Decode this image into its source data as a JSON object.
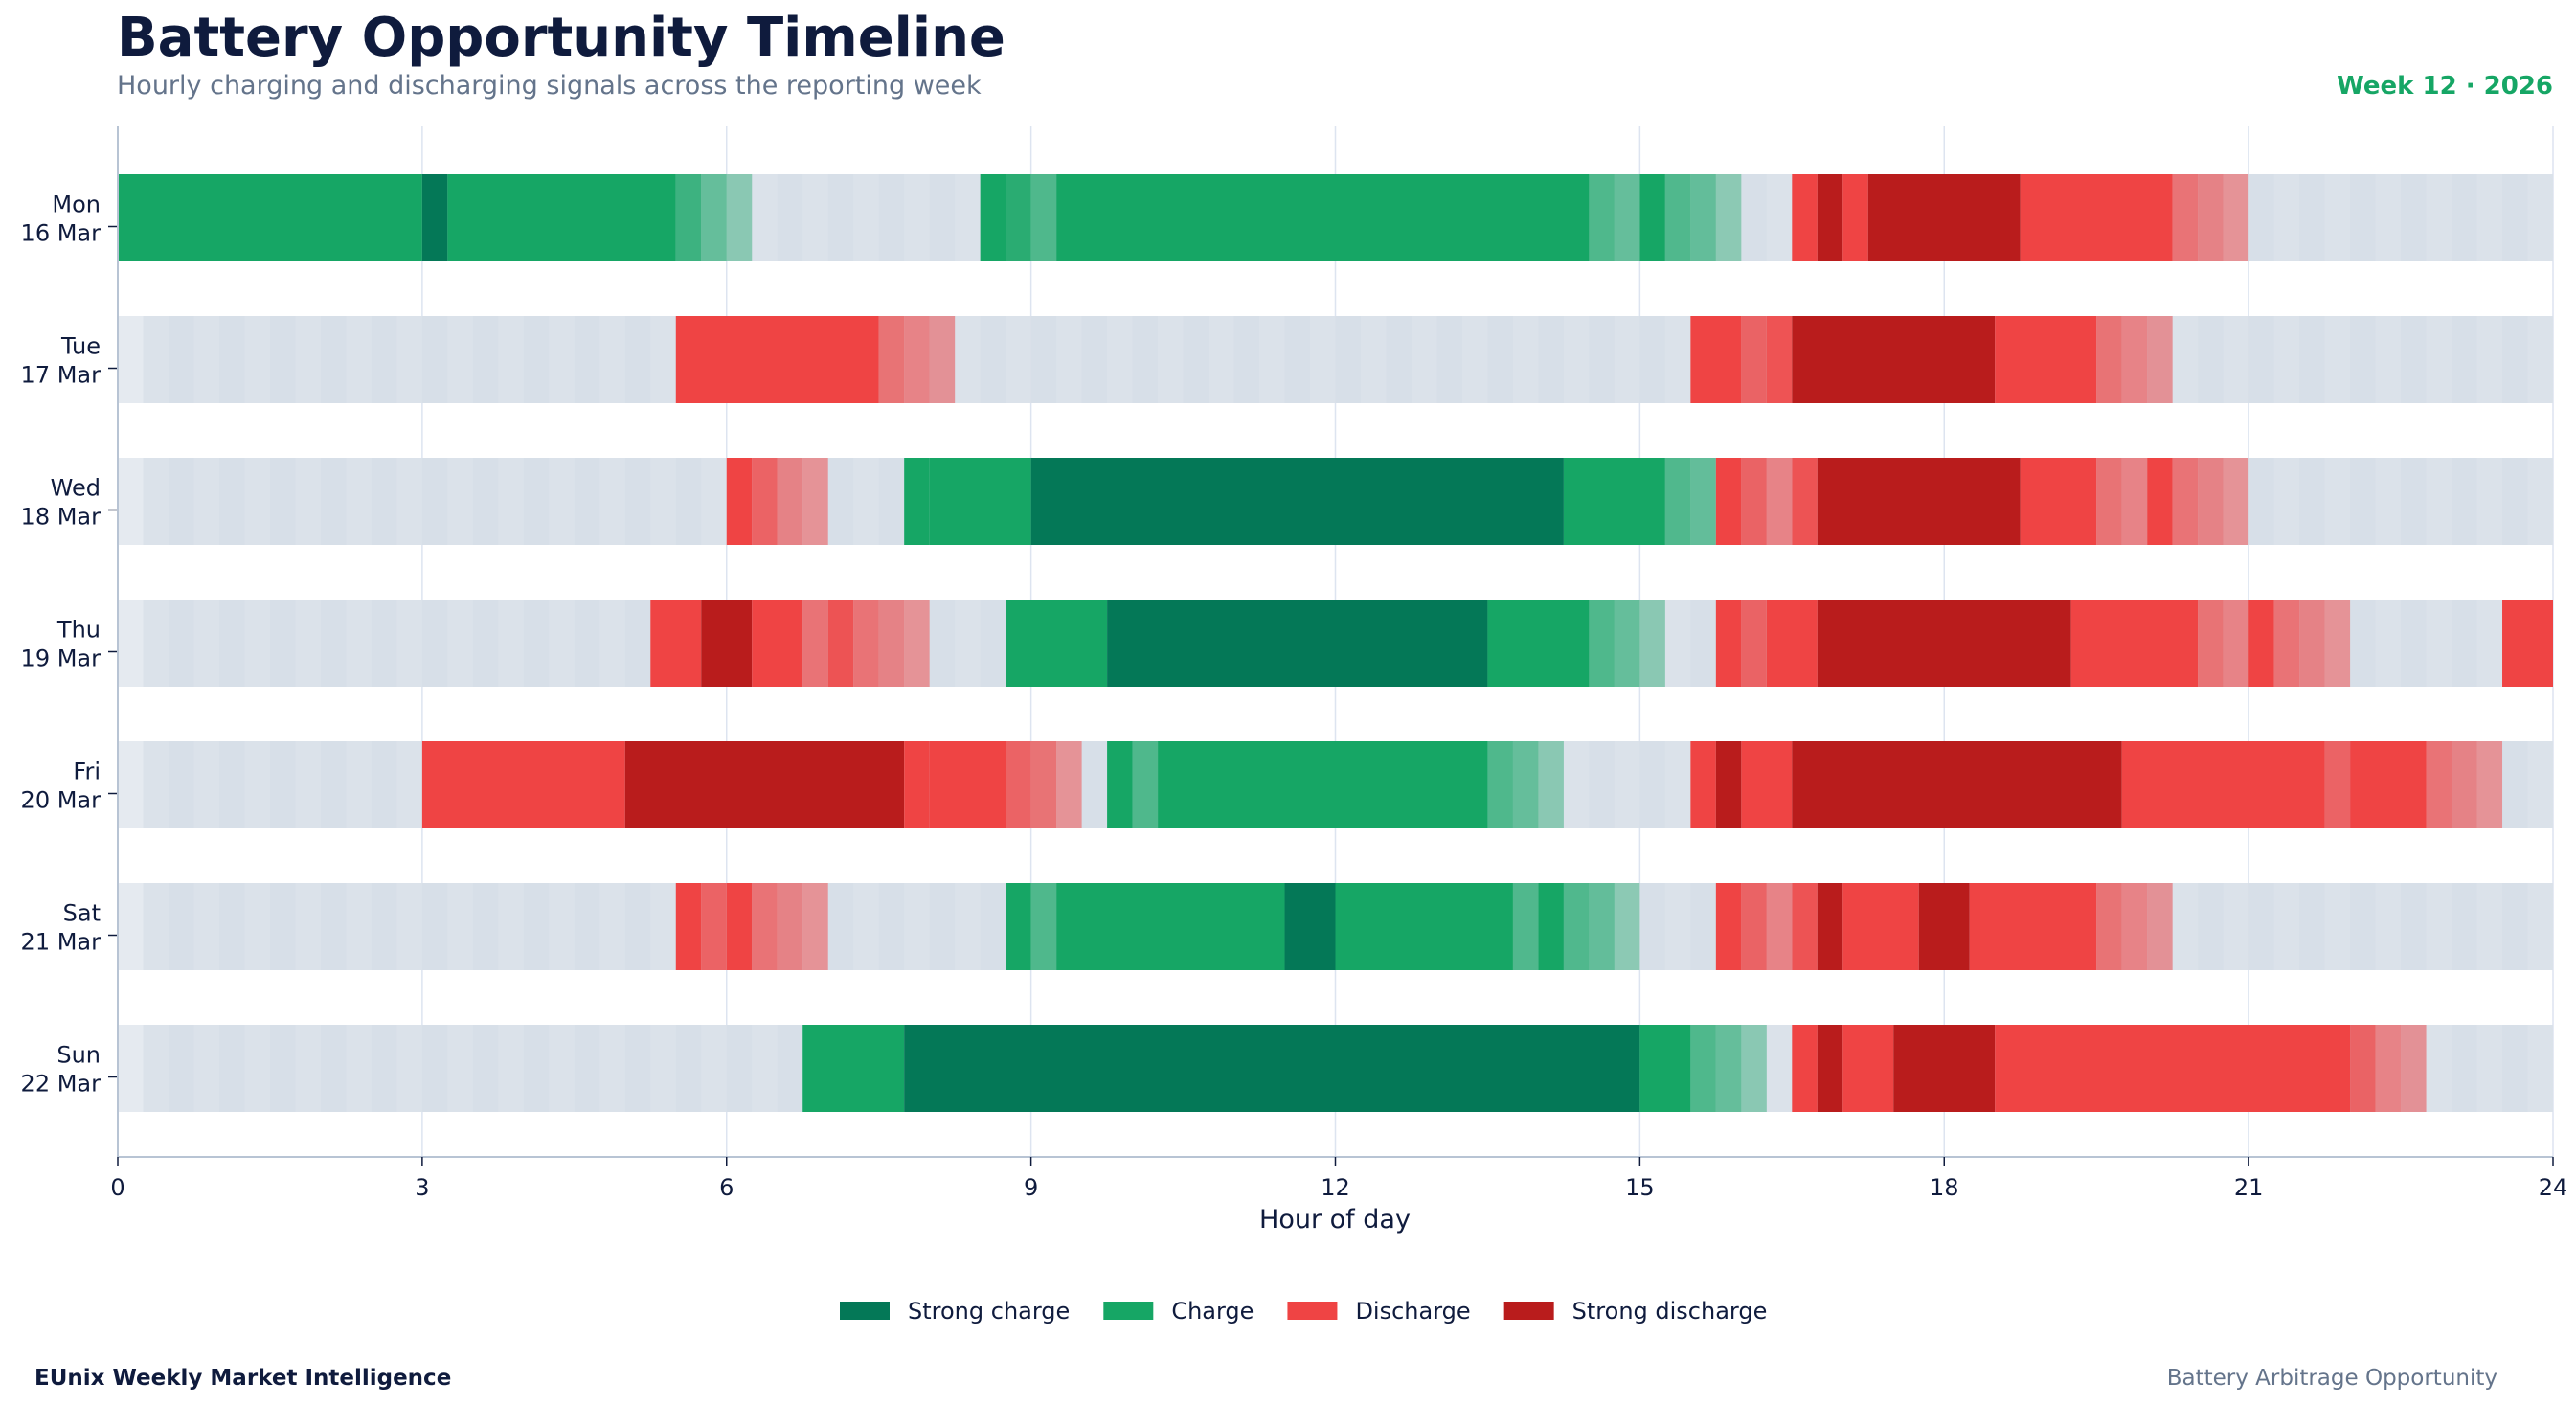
{
  "title": "Battery Opportunity Timeline",
  "subtitle": "Hourly charging and discharging signals across the reporting week",
  "week_label": "Week 12 · 2026",
  "footer_left": "EUnix Weekly Market Intelligence",
  "footer_right": "Battery Arbitrage Opportunity",
  "colors": {
    "strong_charge": "#047857",
    "charge": "#16a665",
    "discharge": "#ef4444",
    "strong_discharge": "#b91c1c",
    "idle": "#d7dfe8",
    "accent": "#16a665",
    "axis": "#b8c4d4",
    "grid": "#dde4f0"
  },
  "chart_data": {
    "type": "heatmap",
    "title": "Battery Opportunity Timeline",
    "xlabel": "Hour of day",
    "ylabel": "",
    "xlim": [
      0,
      24
    ],
    "x_ticks": [
      0,
      3,
      6,
      9,
      12,
      15,
      18,
      21,
      24
    ],
    "grid": "vertical",
    "legend_position": "bottom-center",
    "legend": [
      {
        "key": "strong_charge",
        "label": "Strong charge"
      },
      {
        "key": "charge",
        "label": "Charge"
      },
      {
        "key": "discharge",
        "label": "Discharge"
      },
      {
        "key": "strong_discharge",
        "label": "Strong discharge"
      }
    ],
    "signal_scale": "value in [-1, 1]; 1 = strong charge, 0.5 = charge, -0.5 = discharge, -1 = strong discharge, 0 = idle; intermediate values = weaker signal",
    "days": [
      {
        "day": "Mon",
        "date": "16 Mar",
        "segments": [
          [
            0,
            3,
            0.5
          ],
          [
            3,
            3.25,
            1
          ],
          [
            3.25,
            5.5,
            0.5
          ],
          [
            5.5,
            5.75,
            0.4
          ],
          [
            5.75,
            6,
            0.3
          ],
          [
            6,
            6.25,
            0.2
          ],
          [
            8.5,
            8.75,
            0.5
          ],
          [
            8.75,
            9,
            0.45
          ],
          [
            9,
            9.25,
            0.35
          ],
          [
            9.25,
            14.5,
            0.5
          ],
          [
            14.5,
            14.75,
            0.35
          ],
          [
            14.75,
            15,
            0.3
          ],
          [
            15,
            15.25,
            0.5
          ],
          [
            15.25,
            15.5,
            0.35
          ],
          [
            15.5,
            15.75,
            0.3
          ],
          [
            15.75,
            16,
            0.2
          ],
          [
            16.5,
            16.75,
            -0.5
          ],
          [
            16.75,
            17,
            -1
          ],
          [
            17,
            17.25,
            -0.5
          ],
          [
            17.25,
            18.75,
            -1
          ],
          [
            18.75,
            20.25,
            -0.5
          ],
          [
            20.25,
            20.5,
            -0.35
          ],
          [
            20.5,
            20.75,
            -0.3
          ],
          [
            20.75,
            21,
            -0.25
          ]
        ]
      },
      {
        "day": "Tue",
        "date": "17 Mar",
        "segments": [
          [
            5.5,
            7.5,
            -0.5
          ],
          [
            7.5,
            7.75,
            -0.35
          ],
          [
            7.75,
            8,
            -0.3
          ],
          [
            8,
            8.25,
            -0.25
          ],
          [
            15.5,
            16,
            -0.5
          ],
          [
            16,
            16.25,
            -0.4
          ],
          [
            16.25,
            16.5,
            -0.45
          ],
          [
            16.5,
            18.5,
            -1
          ],
          [
            18.5,
            19.5,
            -0.5
          ],
          [
            19.5,
            19.75,
            -0.35
          ],
          [
            19.75,
            20,
            -0.3
          ],
          [
            20,
            20.25,
            -0.25
          ]
        ]
      },
      {
        "day": "Wed",
        "date": "18 Mar",
        "segments": [
          [
            6,
            6.25,
            -0.5
          ],
          [
            6.25,
            6.5,
            -0.4
          ],
          [
            6.5,
            6.75,
            -0.3
          ],
          [
            6.75,
            7,
            -0.25
          ],
          [
            7.75,
            8,
            0.5
          ],
          [
            8,
            9,
            0.5
          ],
          [
            9,
            14.25,
            1
          ],
          [
            14.25,
            15.25,
            0.5
          ],
          [
            15.25,
            15.5,
            0.35
          ],
          [
            15.5,
            15.75,
            0.3
          ],
          [
            15.75,
            16,
            -0.5
          ],
          [
            16,
            16.25,
            -0.4
          ],
          [
            16.25,
            16.5,
            -0.3
          ],
          [
            16.5,
            16.75,
            -0.45
          ],
          [
            16.75,
            18.75,
            -1
          ],
          [
            18.75,
            19.5,
            -0.5
          ],
          [
            19.5,
            19.75,
            -0.35
          ],
          [
            19.75,
            20,
            -0.3
          ],
          [
            20,
            20.25,
            -0.5
          ],
          [
            20.25,
            20.5,
            -0.35
          ],
          [
            20.5,
            20.75,
            -0.3
          ],
          [
            20.75,
            21,
            -0.25
          ]
        ]
      },
      {
        "day": "Thu",
        "date": "19 Mar",
        "segments": [
          [
            5.25,
            5.75,
            -0.5
          ],
          [
            5.75,
            6.25,
            -1
          ],
          [
            6.25,
            6.75,
            -0.5
          ],
          [
            6.75,
            7,
            -0.35
          ],
          [
            7,
            7.25,
            -0.45
          ],
          [
            7.25,
            7.5,
            -0.35
          ],
          [
            7.5,
            7.75,
            -0.3
          ],
          [
            7.75,
            8,
            -0.25
          ],
          [
            8.75,
            9.75,
            0.5
          ],
          [
            9.75,
            13.5,
            1
          ],
          [
            13.5,
            14.5,
            0.5
          ],
          [
            14.5,
            14.75,
            0.35
          ],
          [
            14.75,
            15,
            0.3
          ],
          [
            15,
            15.25,
            0.2
          ],
          [
            15.75,
            16,
            -0.5
          ],
          [
            16,
            16.25,
            -0.4
          ],
          [
            16.25,
            16.75,
            -0.5
          ],
          [
            16.75,
            19.25,
            -1
          ],
          [
            19.25,
            20.5,
            -0.5
          ],
          [
            20.5,
            20.75,
            -0.35
          ],
          [
            20.75,
            21,
            -0.3
          ],
          [
            21,
            21.25,
            -0.5
          ],
          [
            21.25,
            21.5,
            -0.35
          ],
          [
            21.5,
            21.75,
            -0.3
          ],
          [
            21.75,
            22,
            -0.25
          ],
          [
            23.5,
            24,
            -0.5
          ]
        ]
      },
      {
        "day": "Fri",
        "date": "20 Mar",
        "segments": [
          [
            3,
            5,
            -0.5
          ],
          [
            5,
            7.75,
            -1
          ],
          [
            7.75,
            8,
            -0.8
          ],
          [
            8,
            8.75,
            -0.5
          ],
          [
            8.75,
            9,
            -0.4
          ],
          [
            9,
            9.25,
            -0.35
          ],
          [
            9.25,
            9.5,
            -0.25
          ],
          [
            9.75,
            10,
            0.5
          ],
          [
            10,
            10.25,
            0.35
          ],
          [
            10.25,
            13.5,
            0.5
          ],
          [
            13.5,
            13.75,
            0.35
          ],
          [
            13.75,
            14,
            0.3
          ],
          [
            14,
            14.25,
            0.2
          ],
          [
            15.5,
            15.75,
            -0.5
          ],
          [
            15.75,
            16,
            -1
          ],
          [
            16,
            16.5,
            -0.5
          ],
          [
            16.5,
            19.75,
            -1
          ],
          [
            19.75,
            21.75,
            -0.5
          ],
          [
            21.75,
            22,
            -0.4
          ],
          [
            22,
            22.75,
            -0.5
          ],
          [
            22.75,
            23,
            -0.35
          ],
          [
            23,
            23.25,
            -0.3
          ],
          [
            23.25,
            23.5,
            -0.25
          ]
        ]
      },
      {
        "day": "Sat",
        "date": "21 Mar",
        "segments": [
          [
            5.5,
            5.75,
            -0.5
          ],
          [
            5.75,
            6,
            -0.4
          ],
          [
            6,
            6.25,
            -0.5
          ],
          [
            6.25,
            6.5,
            -0.35
          ],
          [
            6.5,
            6.75,
            -0.3
          ],
          [
            6.75,
            7,
            -0.25
          ],
          [
            8.75,
            9,
            0.5
          ],
          [
            9,
            9.25,
            0.35
          ],
          [
            9.25,
            11.5,
            0.5
          ],
          [
            11.5,
            12,
            1
          ],
          [
            12,
            13.75,
            0.5
          ],
          [
            13.75,
            14,
            0.35
          ],
          [
            14,
            14.25,
            0.5
          ],
          [
            14.25,
            14.5,
            0.35
          ],
          [
            14.5,
            14.75,
            0.3
          ],
          [
            14.75,
            15,
            0.2
          ],
          [
            15.75,
            16,
            -0.5
          ],
          [
            16,
            16.25,
            -0.4
          ],
          [
            16.25,
            16.5,
            -0.3
          ],
          [
            16.5,
            16.75,
            -0.45
          ],
          [
            16.75,
            17,
            -1
          ],
          [
            17,
            17.75,
            -0.5
          ],
          [
            17.75,
            18.25,
            -1
          ],
          [
            18.25,
            19.5,
            -0.5
          ],
          [
            19.5,
            19.75,
            -0.35
          ],
          [
            19.75,
            20,
            -0.3
          ],
          [
            20,
            20.25,
            -0.25
          ]
        ]
      },
      {
        "day": "Sun",
        "date": "22 Mar",
        "segments": [
          [
            6.75,
            7.75,
            0.5
          ],
          [
            7.75,
            15,
            1
          ],
          [
            15,
            15.5,
            0.5
          ],
          [
            15.5,
            15.75,
            0.35
          ],
          [
            15.75,
            16,
            0.3
          ],
          [
            16,
            16.25,
            0.2
          ],
          [
            16.5,
            16.75,
            -0.5
          ],
          [
            16.75,
            17,
            -1
          ],
          [
            17,
            17.5,
            -0.5
          ],
          [
            17.5,
            18.5,
            -1
          ],
          [
            18.5,
            22,
            -0.5
          ],
          [
            22,
            22.25,
            -0.4
          ],
          [
            22.25,
            22.5,
            -0.3
          ],
          [
            22.5,
            22.75,
            -0.25
          ]
        ]
      }
    ]
  }
}
